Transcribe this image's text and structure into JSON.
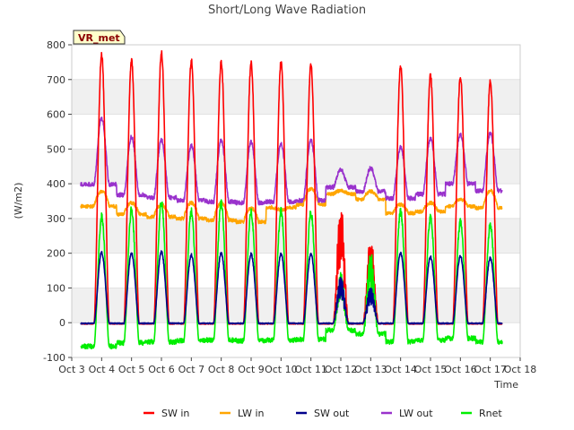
{
  "chart_data": {
    "type": "line",
    "title": "Short/Long Wave Radiation",
    "xlabel": "Time",
    "ylabel": "(W/m2)",
    "site_label": "VR_met",
    "xlim": [
      3,
      18
    ],
    "ylim": [
      -100,
      800
    ],
    "x_ticks": [
      3,
      4,
      5,
      6,
      7,
      8,
      9,
      10,
      11,
      12,
      13,
      14,
      15,
      16,
      17,
      18
    ],
    "x_tick_labels": [
      "Oct 3",
      "Oct 4",
      "Oct 5",
      "Oct 6",
      "Oct 7",
      "Oct 8",
      "Oct 9",
      "Oct 10",
      "Oct 11",
      "Oct 12",
      "Oct 13",
      "Oct 14",
      "Oct 15",
      "Oct 16",
      "Oct 17",
      "Oct 18"
    ],
    "y_ticks": [
      -100,
      0,
      100,
      200,
      300,
      400,
      500,
      600,
      700,
      800
    ],
    "legend_position": "bottom-center",
    "grid": "horizontal bands",
    "data_start": 3.3,
    "data_end": 17.4,
    "days": [
      4,
      5,
      6,
      7,
      8,
      9,
      10,
      11,
      12,
      13,
      14,
      15,
      16,
      17
    ],
    "sw_in_peak": [
      770,
      755,
      778,
      755,
      750,
      748,
      750,
      740,
      330,
      235,
      740,
      712,
      708,
      695
    ],
    "sw_out_peak": [
      203,
      200,
      205,
      195,
      200,
      198,
      198,
      198,
      130,
      100,
      200,
      190,
      192,
      186
    ],
    "lw_out_peak": [
      590,
      535,
      525,
      510,
      525,
      520,
      515,
      525,
      440,
      445,
      505,
      530,
      540,
      545
    ],
    "lw_out_night": [
      398,
      368,
      360,
      352,
      348,
      345,
      348,
      352,
      390,
      378,
      358,
      370,
      400,
      380
    ],
    "lw_in_day": [
      378,
      345,
      340,
      345,
      345,
      330,
      325,
      385,
      380,
      378,
      340,
      345,
      355,
      380
    ],
    "lw_in_night": [
      335,
      312,
      305,
      300,
      295,
      290,
      332,
      340,
      370,
      355,
      315,
      320,
      335,
      330
    ],
    "rnet_peak": [
      305,
      325,
      345,
      320,
      345,
      320,
      320,
      318,
      140,
      195,
      320,
      305,
      290,
      285
    ],
    "rnet_night": [
      -68,
      -58,
      -55,
      -52,
      -50,
      -52,
      -50,
      -48,
      -22,
      -32,
      -55,
      -50,
      -45,
      -55
    ],
    "series": [
      {
        "name": "SW in",
        "color": "#ff0000"
      },
      {
        "name": "LW in",
        "color": "#ffa500"
      },
      {
        "name": "SW out",
        "color": "#00008b"
      },
      {
        "name": "LW out",
        "color": "#9932cc"
      },
      {
        "name": "Rnet",
        "color": "#00ee00"
      }
    ]
  }
}
